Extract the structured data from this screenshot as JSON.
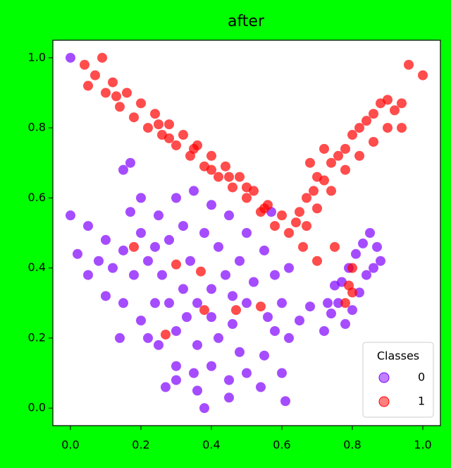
{
  "chart_data": {
    "type": "scatter",
    "title": "after",
    "xlim": [
      -0.05,
      1.05
    ],
    "ylim": [
      -0.05,
      1.05
    ],
    "xticks": [
      {
        "value": 0,
        "label": "0.0"
      },
      0.2,
      0.4,
      0.6,
      0.8,
      {
        "value": 1,
        "label": "1.0"
      }
    ],
    "yticks": [
      {
        "value": 0,
        "label": "0.0"
      },
      0.2,
      0.4,
      0.6,
      0.8,
      {
        "value": 1,
        "label": "1.0"
      }
    ],
    "legend_title": "Classes",
    "legend": "lower right",
    "series": [
      {
        "name": "0",
        "color": "#8000ff",
        "x": [
          0.2,
          0.25,
          0.3,
          0.35,
          0.4,
          0.45,
          0.5,
          0.55,
          0.58,
          0.6,
          0.58,
          0.55,
          0.5,
          0.45,
          0.4,
          0.35,
          0.3,
          0.25,
          0.2,
          0.15,
          0.12,
          0.15,
          0.1,
          0.05,
          0.02,
          0.08,
          0.18,
          0.22,
          0.28,
          0.32,
          0.38,
          0.42,
          0.48,
          0.52,
          0.5,
          0.46,
          0.42,
          0.36,
          0.3,
          0.24,
          0.26,
          0.32,
          0.36,
          0.4,
          0.44,
          0.34,
          0.28,
          0.4,
          0.46,
          0.22,
          0.27,
          0.3,
          0.36,
          0.62,
          0.65,
          0.68,
          0.15,
          0.17,
          0.0,
          0.0,
          0.38,
          0.45,
          0.61,
          0.57,
          0.62,
          0.14,
          0.17,
          0.2,
          0.1,
          0.05,
          0.54,
          0.6,
          0.56,
          0.48,
          0.33,
          0.24,
          0.72,
          0.74,
          0.76,
          0.77,
          0.79,
          0.81,
          0.83,
          0.85,
          0.87,
          0.88,
          0.84,
          0.82,
          0.8,
          0.78,
          0.75,
          0.73,
          0.86
        ],
        "values": [
          0.5,
          0.55,
          0.6,
          0.62,
          0.58,
          0.55,
          0.5,
          0.45,
          0.38,
          0.3,
          0.22,
          0.15,
          0.1,
          0.08,
          0.12,
          0.1,
          0.12,
          0.18,
          0.25,
          0.3,
          0.4,
          0.45,
          0.48,
          0.52,
          0.44,
          0.42,
          0.38,
          0.42,
          0.48,
          0.52,
          0.5,
          0.46,
          0.42,
          0.36,
          0.3,
          0.24,
          0.2,
          0.18,
          0.22,
          0.3,
          0.38,
          0.34,
          0.3,
          0.34,
          0.38,
          0.42,
          0.3,
          0.26,
          0.32,
          0.2,
          0.06,
          0.08,
          0.05,
          0.2,
          0.25,
          0.29,
          0.68,
          0.7,
          0.55,
          1.0,
          0.0,
          0.03,
          0.02,
          0.56,
          0.4,
          0.2,
          0.56,
          0.6,
          0.32,
          0.38,
          0.06,
          0.1,
          0.26,
          0.16,
          0.26,
          0.46,
          0.22,
          0.27,
          0.3,
          0.36,
          0.4,
          0.44,
          0.47,
          0.5,
          0.46,
          0.42,
          0.38,
          0.33,
          0.28,
          0.24,
          0.35,
          0.3,
          0.4
        ]
      },
      {
        "name": "1",
        "color": "#ff0000",
        "x": [
          0.05,
          0.07,
          0.1,
          0.12,
          0.14,
          0.16,
          0.18,
          0.2,
          0.22,
          0.24,
          0.26,
          0.28,
          0.3,
          0.32,
          0.34,
          0.36,
          0.38,
          0.4,
          0.42,
          0.44,
          0.46,
          0.48,
          0.5,
          0.52,
          0.54,
          0.56,
          0.58,
          0.6,
          0.62,
          0.64,
          0.13,
          0.25,
          0.35,
          0.45,
          0.55,
          0.04,
          0.09,
          0.28,
          0.4,
          0.5,
          0.65,
          0.67,
          0.69,
          0.7,
          0.72,
          0.74,
          0.76,
          0.78,
          0.8,
          0.82,
          0.84,
          0.86,
          0.88,
          0.9,
          0.92,
          0.94,
          0.9,
          0.86,
          0.82,
          0.78,
          0.74,
          0.7,
          0.67,
          0.72,
          0.68,
          0.96,
          1.0,
          0.7,
          0.75,
          0.66,
          0.94,
          0.18,
          0.3,
          0.37,
          0.38,
          0.47,
          0.54,
          0.27,
          0.78,
          0.8,
          0.8,
          0.79
        ],
        "values": [
          0.92,
          0.95,
          0.9,
          0.93,
          0.86,
          0.9,
          0.83,
          0.87,
          0.8,
          0.84,
          0.78,
          0.81,
          0.75,
          0.78,
          0.72,
          0.75,
          0.69,
          0.72,
          0.66,
          0.69,
          0.63,
          0.66,
          0.6,
          0.62,
          0.56,
          0.58,
          0.52,
          0.55,
          0.5,
          0.53,
          0.89,
          0.81,
          0.74,
          0.66,
          0.57,
          0.98,
          1.0,
          0.77,
          0.68,
          0.63,
          0.56,
          0.6,
          0.62,
          0.66,
          0.65,
          0.7,
          0.72,
          0.74,
          0.78,
          0.8,
          0.82,
          0.84,
          0.87,
          0.88,
          0.85,
          0.87,
          0.8,
          0.76,
          0.72,
          0.68,
          0.62,
          0.57,
          0.52,
          0.74,
          0.7,
          0.98,
          0.95,
          0.42,
          0.46,
          0.46,
          0.8,
          0.46,
          0.41,
          0.39,
          0.28,
          0.28,
          0.29,
          0.21,
          0.3,
          0.33,
          0.4,
          0.35
        ]
      }
    ]
  }
}
